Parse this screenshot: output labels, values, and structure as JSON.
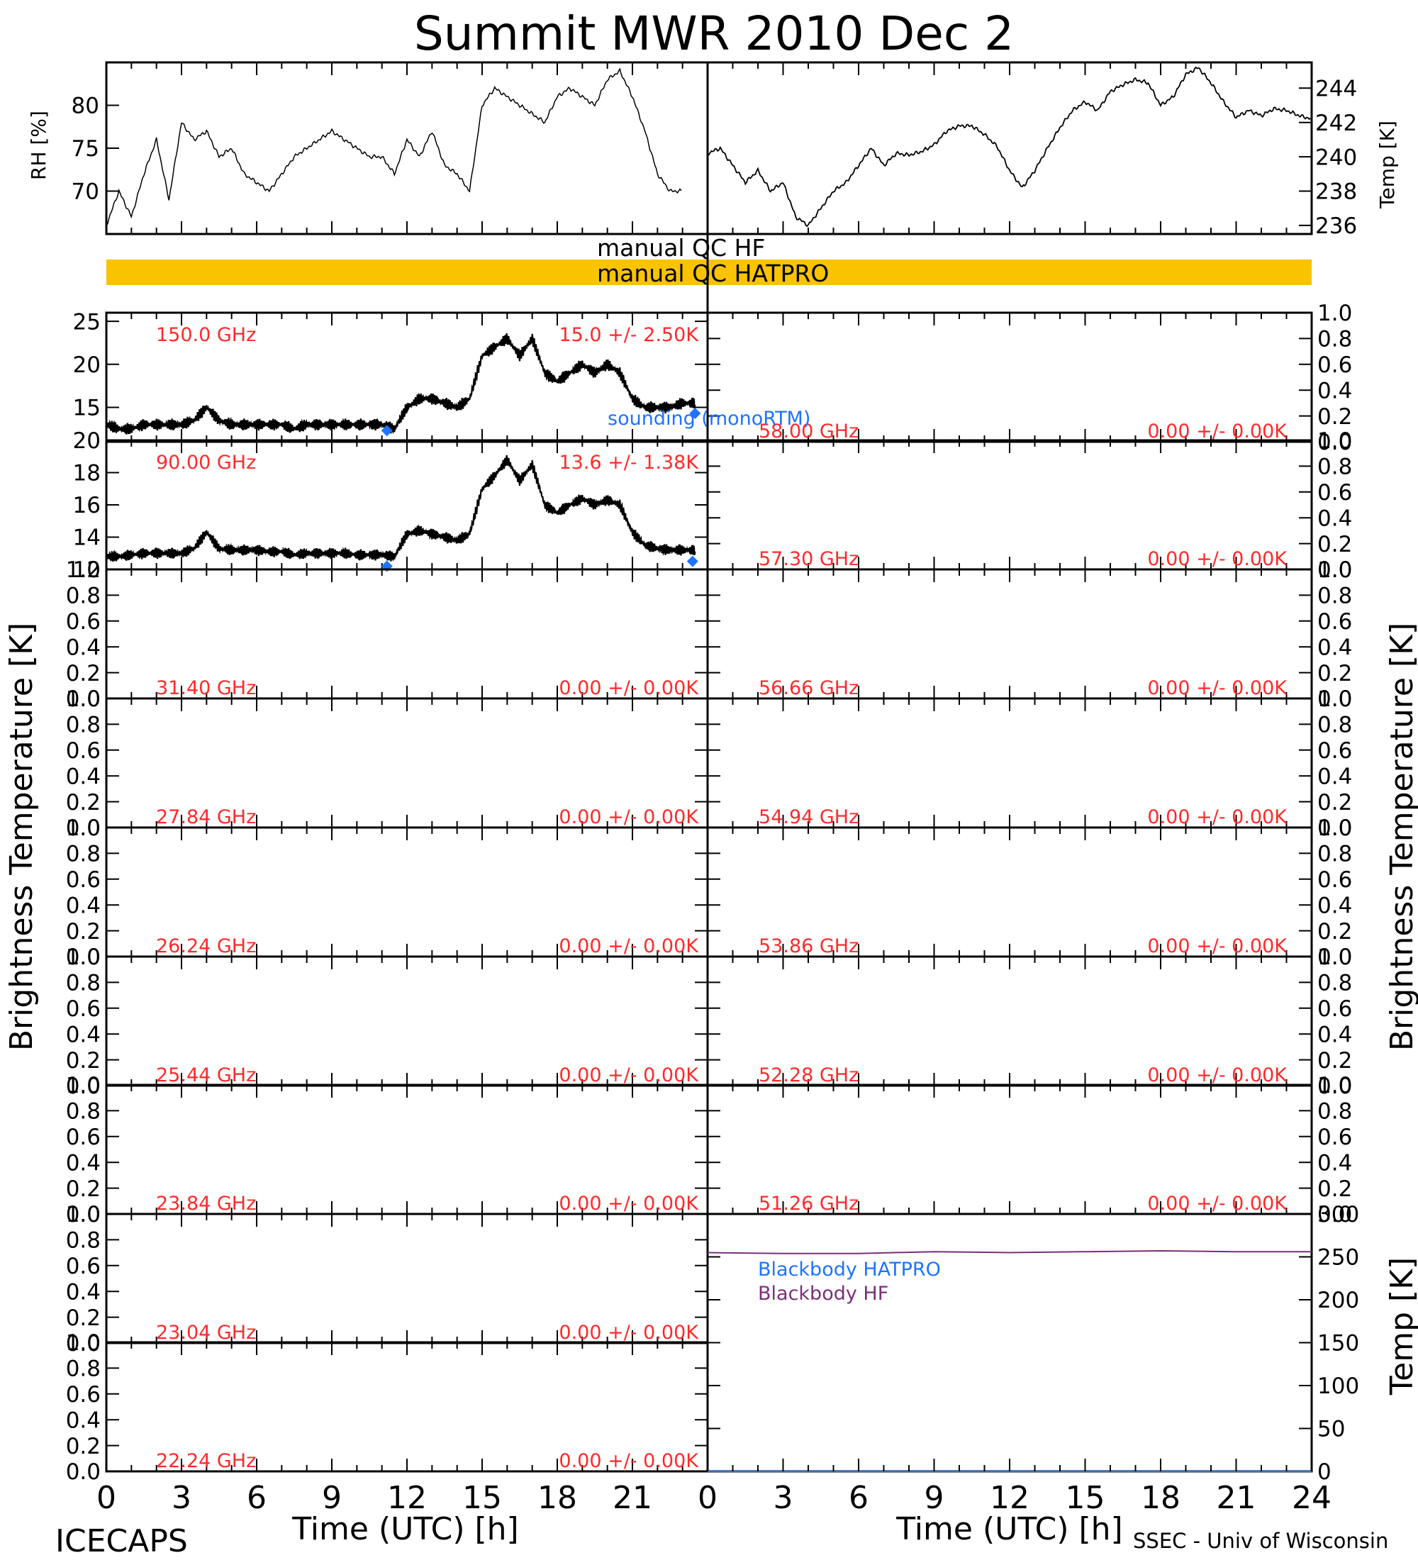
{
  "title": "Summit MWR 2010 Dec  2",
  "footer": {
    "left": "ICECAPS",
    "right": "SSEC - Univ of Wisconsin"
  },
  "colors": {
    "qc_bar": "#f9c300",
    "freq_label": "#ff2a2a",
    "sounding": "#1e73ff",
    "bb_hatpro": "#1e73ff",
    "bb_hf": "#7a2f7a",
    "line": "#000000"
  },
  "axes": {
    "time_label": "Time (UTC) [h]",
    "time_ticks": [
      "0",
      "3",
      "6",
      "9",
      "12",
      "15",
      "18",
      "21",
      "24"
    ],
    "tb_label": "Brightness Temperature [K]",
    "rh_label": "RH [%]",
    "temp_label": "Temp [K]"
  },
  "qc": {
    "hf_label": "manual QC HF",
    "hatpro_label": "manual QC HATPRO",
    "hatpro_flagged": true
  },
  "sounding_label": "sounding (monoRTM)",
  "blackbody": {
    "hatpro_label": "Blackbody HATPRO",
    "hf_label": "Blackbody HF",
    "hf_level_k": 255,
    "hatpro_level_k": 0
  },
  "chart_data": [
    {
      "id": "met",
      "type": "line",
      "series": [
        {
          "name": "RH [%]",
          "x": [
            0,
            0.5,
            1,
            1.5,
            2,
            2.5,
            3,
            3.5,
            4,
            4.5,
            5,
            5.5,
            6,
            6.5,
            7,
            7.5,
            8,
            8.5,
            9,
            9.5,
            10,
            10.5,
            11,
            11.5,
            12,
            12.5,
            13,
            13.5,
            14,
            14.5,
            15,
            15.5,
            16,
            16.5,
            17,
            17.5,
            18,
            18.5,
            19,
            19.5,
            20,
            20.5,
            21,
            21.5,
            22,
            22.5,
            23
          ],
          "y": [
            66,
            70,
            67,
            72,
            76,
            69,
            78,
            76,
            77,
            74,
            75,
            72,
            71,
            70,
            72,
            74,
            75,
            76,
            77,
            76,
            75,
            74,
            74,
            72,
            76,
            74,
            77,
            73,
            72,
            70,
            80,
            82,
            81,
            80,
            79,
            78,
            81,
            82,
            81,
            80,
            83,
            84,
            81,
            77,
            72,
            70,
            70
          ],
          "ylim": [
            65,
            85
          ],
          "ticks": [
            "70",
            "75",
            "80"
          ]
        },
        {
          "name": "Temp [K]",
          "x": [
            0,
            0.5,
            1,
            1.5,
            2,
            2.5,
            3,
            3.5,
            4,
            4.5,
            5,
            5.5,
            6,
            6.5,
            7,
            7.5,
            8,
            8.5,
            9,
            9.5,
            10,
            10.5,
            11,
            11.5,
            12,
            12.5,
            13,
            13.5,
            14,
            14.5,
            15,
            15.5,
            16,
            16.5,
            17,
            17.5,
            18,
            18.5,
            19,
            19.5,
            20,
            20.5,
            21,
            21.5,
            22,
            22.5,
            23,
            23.5,
            24
          ],
          "y": [
            240.2,
            240.5,
            239.5,
            238.5,
            239.2,
            238,
            238.5,
            236.5,
            236,
            237,
            238,
            238.5,
            239.5,
            240.5,
            239.5,
            240.2,
            240.1,
            240.3,
            240.7,
            241.5,
            241.8,
            241.8,
            241.3,
            240.6,
            239.2,
            238.2,
            239.2,
            240.5,
            241.7,
            242.7,
            243.2,
            242.7,
            243.8,
            244.2,
            244.5,
            244.3,
            243,
            243.5,
            244.8,
            245.2,
            244.3,
            243.2,
            242.3,
            242.7,
            242.4,
            242.8,
            242.7,
            242.4,
            242.2
          ],
          "ylim": [
            235.5,
            245.5
          ],
          "ticks": [
            "236",
            "238",
            "240",
            "242",
            "244"
          ]
        }
      ]
    },
    {
      "id": "qc",
      "type": "table",
      "rows": [
        {
          "name": "manual QC HF",
          "flagged": false
        },
        {
          "name": "manual QC HATPRO",
          "flagged": true
        }
      ]
    },
    {
      "id": "ch150",
      "type": "line",
      "freq": "150.0 GHz",
      "stats": "15.0 +/-  2.50K",
      "ylim": [
        11,
        26
      ],
      "ticks": [
        "15",
        "20",
        "25"
      ],
      "series": [
        {
          "name": "150.0 GHz",
          "x": [
            0,
            0.5,
            1,
            1.5,
            2,
            2.5,
            3,
            3.5,
            4,
            4.5,
            5,
            5.5,
            6,
            6.5,
            7,
            7.5,
            8,
            8.5,
            9,
            9.5,
            10,
            10.5,
            11,
            11.5,
            12,
            12.5,
            13,
            13.5,
            14,
            14.5,
            15,
            15.5,
            16,
            16.5,
            17,
            17.5,
            18,
            18.5,
            19,
            19.5,
            20,
            20.5,
            21,
            21.5,
            22,
            22.5,
            23,
            23.5
          ],
          "y": [
            13,
            12.5,
            12.5,
            13,
            13,
            13,
            13,
            13.5,
            15,
            13.5,
            13,
            13,
            13,
            13,
            13,
            12.5,
            13,
            13,
            13,
            13,
            13,
            13,
            13,
            12.5,
            15,
            16,
            16,
            15.5,
            15,
            16,
            21,
            22,
            23,
            21,
            23,
            19,
            18,
            19,
            20,
            19,
            20,
            19,
            16,
            15,
            15,
            15,
            15.5,
            15.5
          ],
          "noise": 0.7
        }
      ],
      "sounding": {
        "x": [
          11.2,
          23.5
        ],
        "y": [
          12.3,
          14.3
        ]
      }
    },
    {
      "id": "ch90",
      "type": "line",
      "freq": "90.00 GHz",
      "stats": "13.6 +/-  1.38K",
      "ylim": [
        12,
        20
      ],
      "ticks": [
        "12",
        "14",
        "16",
        "18",
        "20"
      ],
      "series": [
        {
          "name": "90.00 GHz",
          "x": [
            0,
            0.5,
            1,
            1.5,
            2,
            2.5,
            3,
            3.5,
            4,
            4.5,
            5,
            5.5,
            6,
            6.5,
            7,
            7.5,
            8,
            8.5,
            9,
            9.5,
            10,
            10.5,
            11,
            11.5,
            12,
            12.5,
            13,
            13.5,
            14,
            14.5,
            15,
            15.5,
            16,
            16.5,
            17,
            17.5,
            18,
            18.5,
            19,
            19.5,
            20,
            20.5,
            21,
            21.5,
            22,
            22.5,
            23,
            23.5
          ],
          "y": [
            12.8,
            12.8,
            12.9,
            13,
            13,
            13,
            13,
            13.3,
            14.3,
            13.3,
            13.2,
            13.2,
            13.2,
            13.1,
            13.1,
            12.9,
            13,
            13,
            13,
            13,
            12.9,
            12.9,
            12.9,
            12.8,
            14.2,
            14.4,
            14.2,
            14,
            13.8,
            14.2,
            17,
            17.8,
            18.8,
            17.5,
            18.5,
            16,
            15.5,
            16,
            16.4,
            16,
            16.3,
            16,
            14.3,
            13.5,
            13.3,
            13.2,
            13.2,
            13.2
          ],
          "noise": 0.35
        }
      ],
      "sounding": {
        "x": [
          11.2,
          23.4
        ],
        "y": [
          12.2,
          12.5
        ]
      }
    },
    {
      "id": "ch3140",
      "type": "line",
      "freq": "31.40 GHz",
      "stats": "0.00 +/-  0.00K",
      "ylim": [
        0,
        1
      ],
      "ticks": [
        "0.0",
        "0.2",
        "0.4",
        "0.6",
        "0.8",
        "1.0"
      ]
    },
    {
      "id": "ch2784",
      "type": "line",
      "freq": "27.84 GHz",
      "stats": "0.00 +/-  0.00K",
      "ylim": [
        0,
        1
      ],
      "ticks": [
        "0.0",
        "0.2",
        "0.4",
        "0.6",
        "0.8",
        "1.0"
      ]
    },
    {
      "id": "ch2624",
      "type": "line",
      "freq": "26.24 GHz",
      "stats": "0.00 +/-  0.00K",
      "ylim": [
        0,
        1
      ],
      "ticks": [
        "0.0",
        "0.2",
        "0.4",
        "0.6",
        "0.8",
        "1.0"
      ]
    },
    {
      "id": "ch2544",
      "type": "line",
      "freq": "25.44 GHz",
      "stats": "0.00 +/-  0.00K",
      "ylim": [
        0,
        1
      ],
      "ticks": [
        "0.0",
        "0.2",
        "0.4",
        "0.6",
        "0.8",
        "1.0"
      ]
    },
    {
      "id": "ch2384",
      "type": "line",
      "freq": "23.84 GHz",
      "stats": "0.00 +/-  0.00K",
      "ylim": [
        0,
        1
      ],
      "ticks": [
        "0.0",
        "0.2",
        "0.4",
        "0.6",
        "0.8",
        "1.0"
      ]
    },
    {
      "id": "ch2304",
      "type": "line",
      "freq": "23.04 GHz",
      "stats": "0.00 +/-  0.00K",
      "ylim": [
        0,
        1
      ],
      "ticks": [
        "0.0",
        "0.2",
        "0.4",
        "0.6",
        "0.8",
        "1.0"
      ]
    },
    {
      "id": "ch2224",
      "type": "line",
      "freq": "22.24 GHz",
      "stats": "0.00 +/-  0.00K",
      "ylim": [
        0,
        1
      ],
      "ticks": [
        "0.0",
        "0.2",
        "0.4",
        "0.6",
        "0.8",
        "1.0"
      ]
    },
    {
      "id": "ch5800",
      "type": "line",
      "freq": "58.00 GHz",
      "stats": "0.00 +/-  0.00K",
      "ylim": [
        0,
        1
      ],
      "ticks": [
        "0.0",
        "0.2",
        "0.4",
        "0.6",
        "0.8",
        "1.0"
      ]
    },
    {
      "id": "ch5730",
      "type": "line",
      "freq": "57.30 GHz",
      "stats": "0.00 +/-  0.00K",
      "ylim": [
        0,
        1
      ],
      "ticks": [
        "0.0",
        "0.2",
        "0.4",
        "0.6",
        "0.8",
        "1.0"
      ]
    },
    {
      "id": "ch5666",
      "type": "line",
      "freq": "56.66 GHz",
      "stats": "0.00 +/-  0.00K",
      "ylim": [
        0,
        1
      ],
      "ticks": [
        "0.0",
        "0.2",
        "0.4",
        "0.6",
        "0.8",
        "1.0"
      ]
    },
    {
      "id": "ch5494",
      "type": "line",
      "freq": "54.94 GHz",
      "stats": "0.00 +/-  0.00K",
      "ylim": [
        0,
        1
      ],
      "ticks": [
        "0.0",
        "0.2",
        "0.4",
        "0.6",
        "0.8",
        "1.0"
      ]
    },
    {
      "id": "ch5386",
      "type": "line",
      "freq": "53.86 GHz",
      "stats": "0.00 +/-  0.00K",
      "ylim": [
        0,
        1
      ],
      "ticks": [
        "0.0",
        "0.2",
        "0.4",
        "0.6",
        "0.8",
        "1.0"
      ]
    },
    {
      "id": "ch5228",
      "type": "line",
      "freq": "52.28 GHz",
      "stats": "0.00 +/-  0.00K",
      "ylim": [
        0,
        1
      ],
      "ticks": [
        "0.0",
        "0.2",
        "0.4",
        "0.6",
        "0.8",
        "1.0"
      ]
    },
    {
      "id": "ch5126",
      "type": "line",
      "freq": "51.26 GHz",
      "stats": "0.00 +/-  0.00K",
      "ylim": [
        0,
        1
      ],
      "ticks": [
        "0.0",
        "0.2",
        "0.4",
        "0.6",
        "0.8",
        "1.0"
      ]
    },
    {
      "id": "blackbody",
      "type": "line",
      "ylim": [
        0,
        300
      ],
      "ticks": [
        "0",
        "50",
        "100",
        "150",
        "200",
        "250",
        "300"
      ],
      "series": [
        {
          "name": "Blackbody HATPRO",
          "x": [
            0,
            24
          ],
          "y": [
            0,
            0
          ]
        },
        {
          "name": "Blackbody HF",
          "x": [
            0,
            3,
            6,
            9,
            12,
            15,
            18,
            21,
            24
          ],
          "y": [
            255,
            254,
            254,
            256,
            255,
            256,
            257,
            256,
            256
          ]
        }
      ]
    }
  ]
}
